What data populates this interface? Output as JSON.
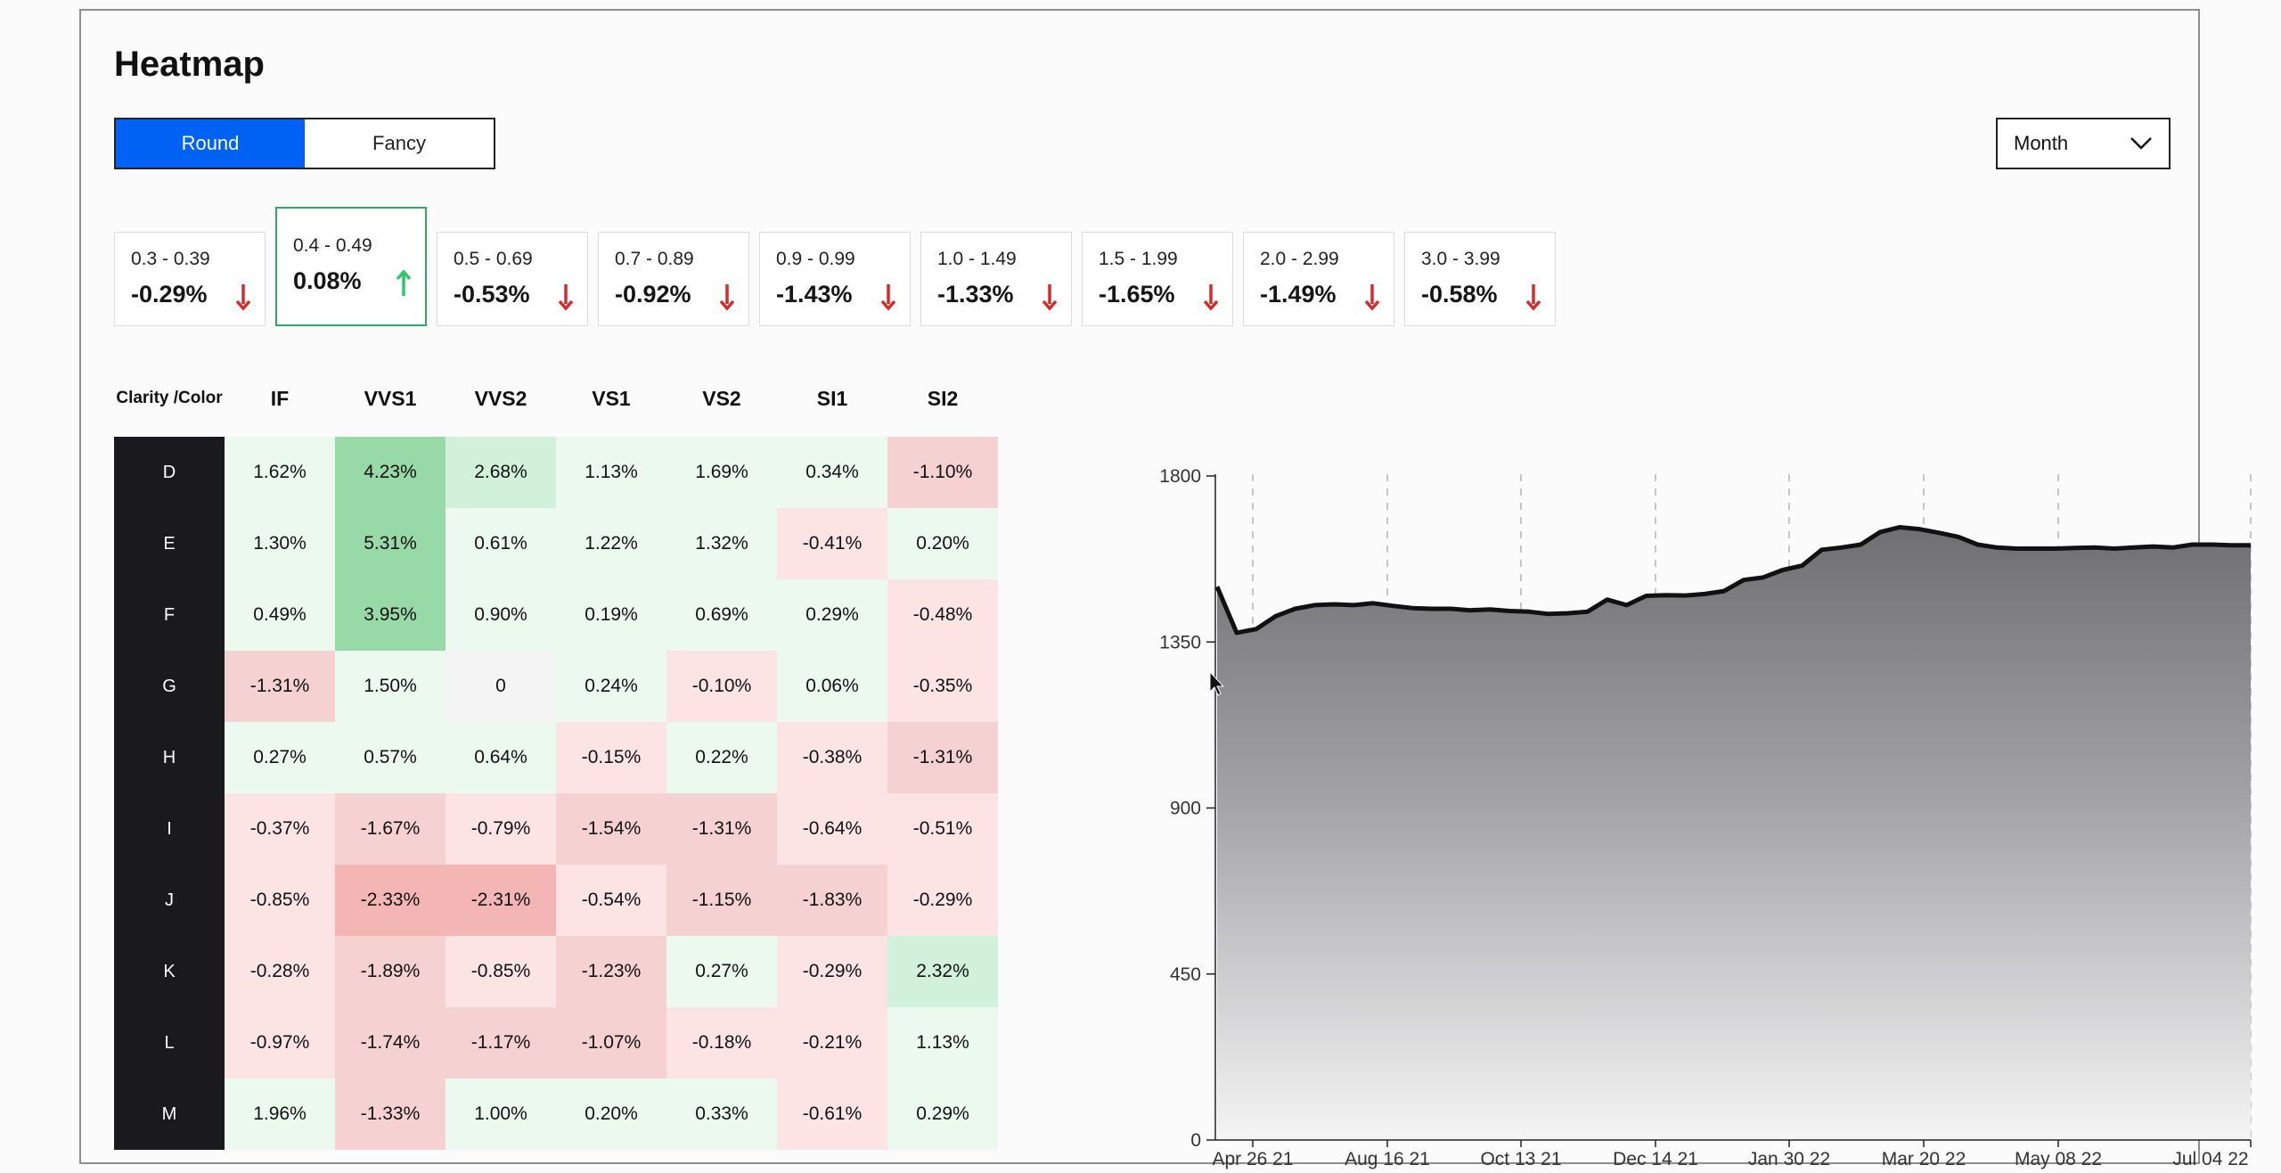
{
  "title": "Heatmap",
  "toggle": {
    "options": [
      "Round",
      "Fancy"
    ],
    "active": 0
  },
  "period_select": {
    "value": "Month"
  },
  "size_cards": [
    {
      "range": "0.3 - 0.39",
      "change": "-0.29%",
      "direction": "down"
    },
    {
      "range": "0.4 - 0.49",
      "change": "0.08%",
      "direction": "up",
      "selected": true
    },
    {
      "range": "0.5 - 0.69",
      "change": "-0.53%",
      "direction": "down"
    },
    {
      "range": "0.7 - 0.89",
      "change": "-0.92%",
      "direction": "down"
    },
    {
      "range": "0.9 - 0.99",
      "change": "-1.43%",
      "direction": "down"
    },
    {
      "range": "1.0 - 1.49",
      "change": "-1.33%",
      "direction": "down"
    },
    {
      "range": "1.5 - 1.99",
      "change": "-1.65%",
      "direction": "down"
    },
    {
      "range": "2.0 - 2.99",
      "change": "-1.49%",
      "direction": "down"
    },
    {
      "range": "3.0 - 3.99",
      "change": "-0.58%",
      "direction": "down"
    }
  ],
  "colors": {
    "accent": "#0062f5",
    "up": "#2fc76b",
    "down": "#d62b2b",
    "selected_border": "#2fa866"
  },
  "heatmap": {
    "corner_label": [
      "Clarity /",
      "Color"
    ],
    "columns": [
      "IF",
      "VVS1",
      "VVS2",
      "VS1",
      "VS2",
      "SI1",
      "SI2"
    ],
    "rows": [
      {
        "label": "D",
        "values": [
          "1.62%",
          "4.23%",
          "2.68%",
          "1.13%",
          "1.69%",
          "0.34%",
          "-1.10%"
        ]
      },
      {
        "label": "E",
        "values": [
          "1.30%",
          "5.31%",
          "0.61%",
          "1.22%",
          "1.32%",
          "-0.41%",
          "0.20%"
        ]
      },
      {
        "label": "F",
        "values": [
          "0.49%",
          "3.95%",
          "0.90%",
          "0.19%",
          "0.69%",
          "0.29%",
          "-0.48%"
        ]
      },
      {
        "label": "G",
        "values": [
          "-1.31%",
          "1.50%",
          "0",
          "0.24%",
          "-0.10%",
          "0.06%",
          "-0.35%"
        ]
      },
      {
        "label": "H",
        "values": [
          "0.27%",
          "0.57%",
          "0.64%",
          "-0.15%",
          "0.22%",
          "-0.38%",
          "-1.31%"
        ]
      },
      {
        "label": "I",
        "values": [
          "-0.37%",
          "-1.67%",
          "-0.79%",
          "-1.54%",
          "-1.31%",
          "-0.64%",
          "-0.51%"
        ]
      },
      {
        "label": "J",
        "values": [
          "-0.85%",
          "-2.33%",
          "-2.31%",
          "-0.54%",
          "-1.15%",
          "-1.83%",
          "-0.29%"
        ]
      },
      {
        "label": "K",
        "values": [
          "-0.28%",
          "-1.89%",
          "-0.85%",
          "-1.23%",
          "0.27%",
          "-0.29%",
          "2.32%"
        ]
      },
      {
        "label": "L",
        "values": [
          "-0.97%",
          "-1.74%",
          "-1.17%",
          "-1.07%",
          "-0.18%",
          "-0.21%",
          "1.13%"
        ]
      },
      {
        "label": "M",
        "values": [
          "1.96%",
          "-1.33%",
          "1.00%",
          "0.20%",
          "0.33%",
          "-0.61%",
          "0.29%"
        ]
      }
    ]
  },
  "chart_data": {
    "type": "area",
    "y_ticks": [
      0,
      450,
      900,
      1350,
      1800
    ],
    "ylim": [
      0,
      1800
    ],
    "x_tick_labels": [
      "Apr 26 21",
      "Aug 16 21",
      "Oct 13 21",
      "Dec 14 21",
      "Jan 30 22",
      "Mar 20 22",
      "May 08 22",
      "Jul 04 22"
    ],
    "grid": "vertical dashed",
    "series": [
      {
        "values": [
          1500,
          1375,
          1385,
          1420,
          1440,
          1450,
          1452,
          1450,
          1455,
          1448,
          1442,
          1440,
          1440,
          1436,
          1438,
          1434,
          1432,
          1426,
          1428,
          1432,
          1465,
          1450,
          1475,
          1477,
          1476,
          1480,
          1488,
          1518,
          1525,
          1545,
          1557,
          1600,
          1606,
          1614,
          1648,
          1661,
          1656,
          1646,
          1635,
          1614,
          1606,
          1603,
          1603,
          1603,
          1605,
          1606,
          1603,
          1606,
          1609,
          1606,
          1614,
          1614,
          1612,
          1612
        ]
      }
    ]
  }
}
